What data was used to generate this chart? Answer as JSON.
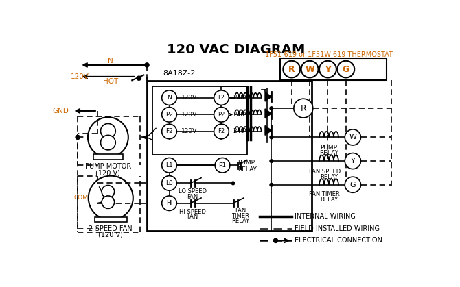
{
  "title": "120 VAC DIAGRAM",
  "title_fontsize": 14,
  "bg_color": "#ffffff",
  "line_color": "#000000",
  "orange_color": "#cc6600",
  "thermostat_label": "1F51-619 or 1F51W-619 THERMOSTAT",
  "relay_box_label": "8A18Z-2",
  "terminal_labels": [
    "R",
    "W",
    "Y",
    "G"
  ],
  "figsize": [
    6.7,
    4.19
  ],
  "dpi": 100
}
